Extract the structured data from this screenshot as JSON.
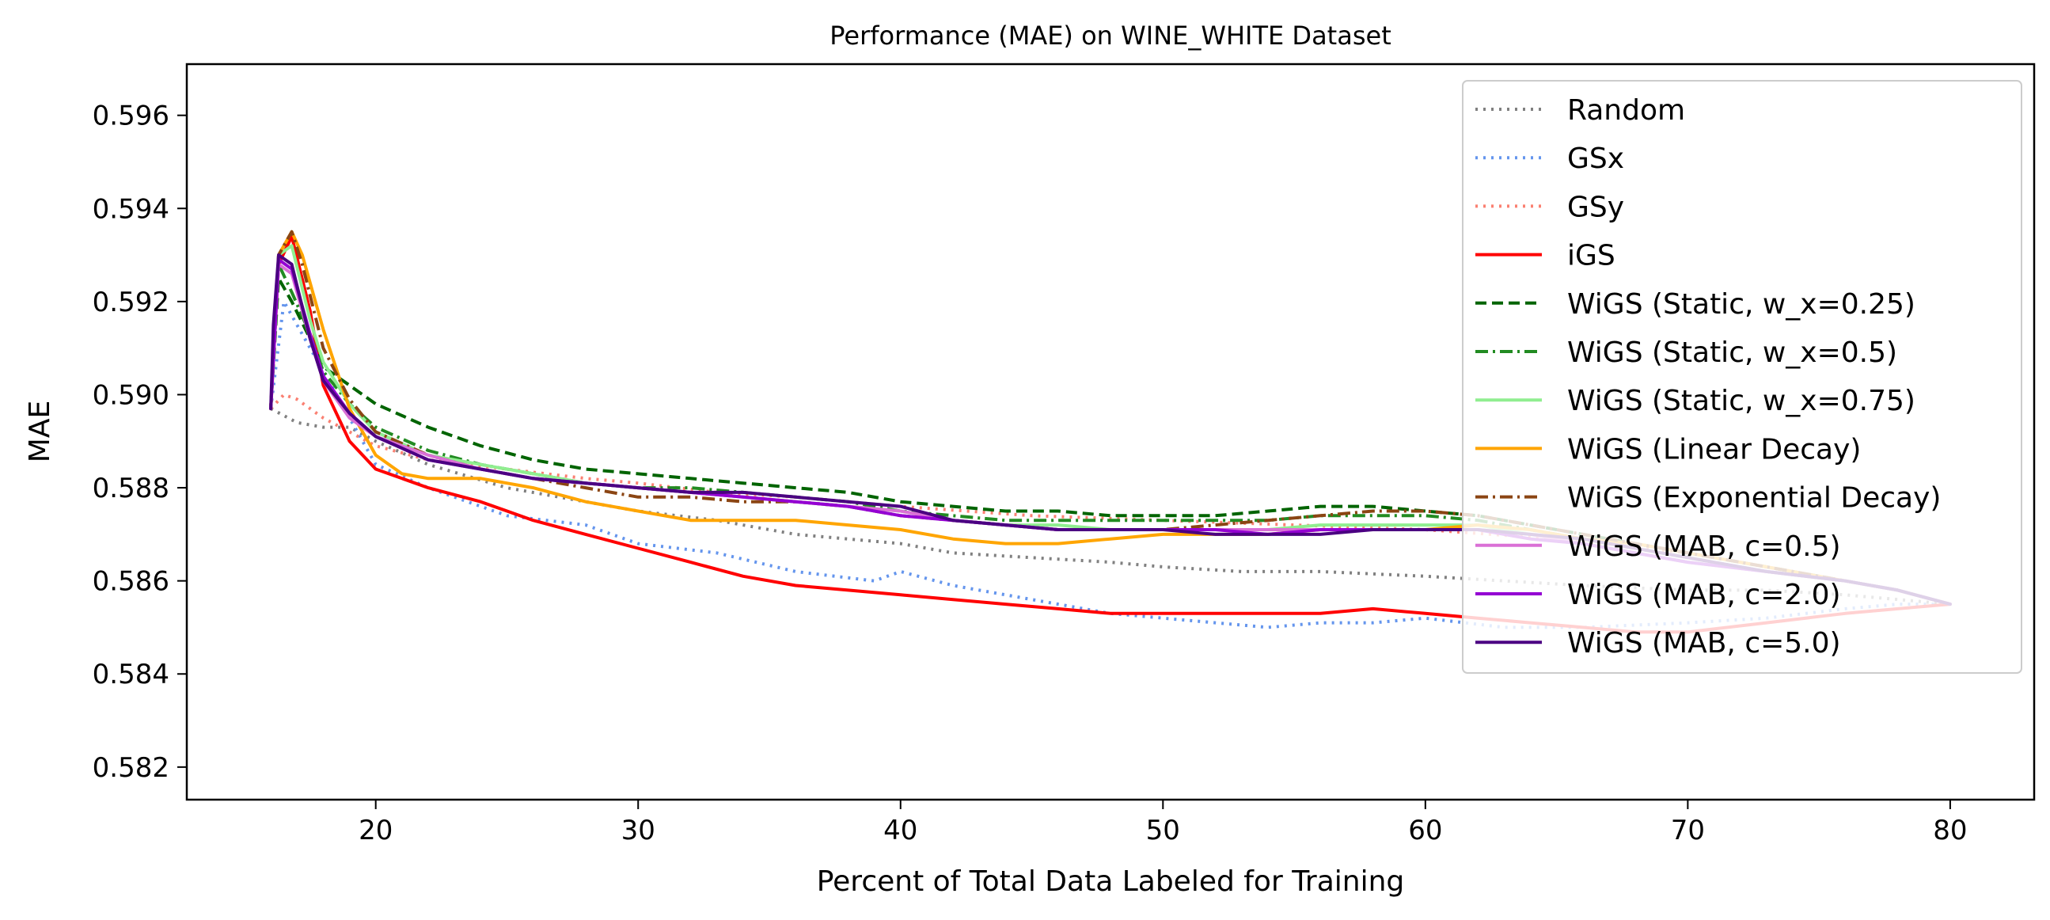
{
  "chart_data": {
    "type": "line",
    "title": "Performance (MAE) on WINE_WHITE Dataset",
    "xlabel": "Percent of Total Data Labeled for Training",
    "ylabel": "MAE",
    "xlim": [
      12.8,
      83.2
    ],
    "ylim": [
      0.5813,
      0.5971
    ],
    "xticks": [
      20,
      30,
      40,
      50,
      60,
      70,
      80
    ],
    "yticks": [
      0.582,
      0.584,
      0.586,
      0.588,
      0.59,
      0.592,
      0.594,
      0.596
    ],
    "grid": false,
    "legend_position": "top-right",
    "series": [
      {
        "name": "Random",
        "color": "#808080",
        "style": "dotted",
        "x": [
          16,
          17,
          18,
          19,
          20,
          22,
          25,
          28,
          30,
          33,
          36,
          40,
          42,
          45,
          48,
          50,
          53,
          56,
          60,
          63,
          66,
          70,
          73,
          76,
          78,
          80
        ],
        "y": [
          0.5897,
          0.5894,
          0.5893,
          0.5893,
          0.589,
          0.5885,
          0.588,
          0.5877,
          0.5875,
          0.5873,
          0.587,
          0.5868,
          0.5866,
          0.5865,
          0.5864,
          0.5863,
          0.5862,
          0.5862,
          0.5861,
          0.586,
          0.5859,
          0.5858,
          0.5858,
          0.5857,
          0.5856,
          0.5855
        ]
      },
      {
        "name": "GSx",
        "color": "#6495ED",
        "style": "dotted",
        "x": [
          16,
          16.5,
          17,
          18,
          19,
          20,
          22,
          25,
          28,
          30,
          33,
          36,
          39,
          40,
          42,
          45,
          48,
          50,
          52,
          54,
          56,
          58,
          60,
          63,
          66,
          70,
          73,
          76,
          78,
          80
        ],
        "y": [
          0.5897,
          0.592,
          0.5915,
          0.5905,
          0.5895,
          0.5885,
          0.588,
          0.5874,
          0.5872,
          0.5868,
          0.5866,
          0.5862,
          0.586,
          0.5862,
          0.5859,
          0.5856,
          0.5853,
          0.5852,
          0.5851,
          0.585,
          0.5851,
          0.5851,
          0.5852,
          0.585,
          0.585,
          0.5851,
          0.5852,
          0.5854,
          0.5855,
          0.5855
        ]
      },
      {
        "name": "GSy",
        "color": "#FA8072",
        "style": "dotted",
        "x": [
          16,
          16.5,
          17,
          18,
          19,
          20,
          22,
          25,
          28,
          30,
          33,
          36,
          40,
          45,
          50,
          55,
          60,
          65,
          70,
          73,
          76,
          78,
          80
        ],
        "y": [
          0.5897,
          0.59,
          0.5899,
          0.5895,
          0.5892,
          0.5889,
          0.5886,
          0.5884,
          0.5882,
          0.5881,
          0.5879,
          0.5878,
          0.5876,
          0.5874,
          0.5873,
          0.5872,
          0.5871,
          0.5869,
          0.5866,
          0.5863,
          0.586,
          0.5858,
          0.5855
        ]
      },
      {
        "name": "iGS",
        "color": "#FF0000",
        "style": "solid",
        "x": [
          16,
          16.3,
          16.8,
          17.5,
          18,
          19,
          20,
          21,
          22,
          24,
          26,
          28,
          30,
          32,
          34,
          36,
          38,
          40,
          42,
          44,
          46,
          48,
          50,
          52,
          54,
          56,
          58,
          60,
          62,
          64,
          66,
          68,
          70,
          73,
          76,
          78,
          80
        ],
        "y": [
          0.5897,
          0.5928,
          0.5934,
          0.5918,
          0.5902,
          0.589,
          0.5884,
          0.5882,
          0.588,
          0.5877,
          0.5873,
          0.587,
          0.5867,
          0.5864,
          0.5861,
          0.5859,
          0.5858,
          0.5857,
          0.5856,
          0.5855,
          0.5854,
          0.5853,
          0.5853,
          0.5853,
          0.5853,
          0.5853,
          0.5854,
          0.5853,
          0.5852,
          0.5851,
          0.585,
          0.5849,
          0.5849,
          0.5851,
          0.5853,
          0.5854,
          0.5855
        ]
      },
      {
        "name": "WiGS (Static, w_x=0.25)",
        "color": "#006400",
        "style": "dashed",
        "x": [
          16,
          16.3,
          16.8,
          17.5,
          18,
          19,
          20,
          22,
          24,
          26,
          28,
          30,
          32,
          34,
          36,
          38,
          40,
          42,
          44,
          46,
          48,
          50,
          52,
          54,
          56,
          58,
          60,
          62,
          64,
          66,
          68,
          70,
          73,
          76,
          78,
          80
        ],
        "y": [
          0.5897,
          0.5925,
          0.592,
          0.5912,
          0.5906,
          0.5902,
          0.5898,
          0.5893,
          0.5889,
          0.5886,
          0.5884,
          0.5883,
          0.5882,
          0.5881,
          0.588,
          0.5879,
          0.5877,
          0.5876,
          0.5875,
          0.5875,
          0.5874,
          0.5874,
          0.5874,
          0.5875,
          0.5876,
          0.5876,
          0.5875,
          0.5874,
          0.5872,
          0.587,
          0.5868,
          0.5866,
          0.5863,
          0.586,
          0.5858,
          0.5855
        ]
      },
      {
        "name": "WiGS (Static, w_x=0.5)",
        "color": "#228B22",
        "style": "dashdot",
        "x": [
          16,
          16.3,
          16.8,
          17.5,
          18,
          19,
          20,
          22,
          24,
          26,
          28,
          30,
          32,
          34,
          36,
          38,
          40,
          42,
          44,
          46,
          48,
          50,
          52,
          54,
          56,
          58,
          60,
          62,
          64,
          66,
          68,
          70,
          73,
          76,
          78,
          80
        ],
        "y": [
          0.5897,
          0.5928,
          0.5922,
          0.5913,
          0.5905,
          0.5898,
          0.5893,
          0.5888,
          0.5885,
          0.5883,
          0.5881,
          0.588,
          0.588,
          0.5879,
          0.5878,
          0.5877,
          0.5875,
          0.5874,
          0.5873,
          0.5873,
          0.5873,
          0.5873,
          0.5873,
          0.5873,
          0.5874,
          0.5874,
          0.5874,
          0.5873,
          0.5871,
          0.5869,
          0.5867,
          0.5865,
          0.5862,
          0.586,
          0.5858,
          0.5855
        ]
      },
      {
        "name": "WiGS (Static, w_x=0.75)",
        "color": "#90EE90",
        "style": "solid",
        "x": [
          16,
          16.3,
          16.8,
          17.5,
          18,
          19,
          20,
          22,
          24,
          26,
          28,
          30,
          32,
          34,
          36,
          38,
          40,
          42,
          44,
          46,
          48,
          50,
          52,
          54,
          56,
          58,
          60,
          62,
          64,
          66,
          68,
          70,
          73,
          76,
          78,
          80
        ],
        "y": [
          0.5897,
          0.593,
          0.5932,
          0.5916,
          0.5907,
          0.5898,
          0.5892,
          0.5887,
          0.5885,
          0.5883,
          0.5881,
          0.588,
          0.5879,
          0.5878,
          0.5877,
          0.5876,
          0.5875,
          0.5873,
          0.5872,
          0.5872,
          0.5871,
          0.5871,
          0.5871,
          0.5871,
          0.5872,
          0.5872,
          0.5872,
          0.5872,
          0.587,
          0.5868,
          0.5866,
          0.5864,
          0.5862,
          0.586,
          0.5858,
          0.5855
        ]
      },
      {
        "name": "WiGS (Linear Decay)",
        "color": "#FFA500",
        "style": "solid",
        "x": [
          16,
          16.3,
          16.8,
          17.2,
          18,
          19,
          20,
          21,
          22,
          24,
          26,
          28,
          30,
          32,
          34,
          36,
          38,
          40,
          42,
          44,
          46,
          48,
          50,
          52,
          54,
          56,
          58,
          60,
          62,
          64,
          66,
          68,
          70,
          73,
          76,
          78,
          80
        ],
        "y": [
          0.5897,
          0.593,
          0.5935,
          0.593,
          0.5914,
          0.5897,
          0.5887,
          0.5883,
          0.5882,
          0.5882,
          0.588,
          0.5877,
          0.5875,
          0.5873,
          0.5873,
          0.5873,
          0.5872,
          0.5871,
          0.5869,
          0.5868,
          0.5868,
          0.5869,
          0.587,
          0.587,
          0.587,
          0.5871,
          0.5871,
          0.5871,
          0.5872,
          0.5871,
          0.5869,
          0.5868,
          0.5866,
          0.5863,
          0.586,
          0.5858,
          0.5855
        ]
      },
      {
        "name": "WiGS (Exponential Decay)",
        "color": "#8B4513",
        "style": "dashdot",
        "x": [
          16,
          16.3,
          16.8,
          17.2,
          18,
          19,
          20,
          22,
          24,
          26,
          28,
          30,
          32,
          34,
          36,
          38,
          40,
          42,
          44,
          46,
          48,
          50,
          52,
          54,
          56,
          58,
          60,
          62,
          64,
          66,
          68,
          70,
          73,
          76,
          78,
          80
        ],
        "y": [
          0.5897,
          0.593,
          0.5935,
          0.5928,
          0.591,
          0.5899,
          0.5892,
          0.5887,
          0.5884,
          0.5882,
          0.588,
          0.5878,
          0.5878,
          0.5877,
          0.5877,
          0.5876,
          0.5874,
          0.5873,
          0.5872,
          0.5871,
          0.5871,
          0.5871,
          0.5872,
          0.5873,
          0.5874,
          0.5875,
          0.5875,
          0.5874,
          0.5872,
          0.587,
          0.5868,
          0.5866,
          0.5863,
          0.586,
          0.5858,
          0.5855
        ]
      },
      {
        "name": "WiGS (MAB, c=0.5)",
        "color": "#DA70D6",
        "style": "solid",
        "x": [
          16,
          16.3,
          16.8,
          17.5,
          18,
          19,
          20,
          22,
          24,
          26,
          28,
          30,
          32,
          34,
          36,
          38,
          40,
          42,
          44,
          46,
          48,
          50,
          52,
          54,
          56,
          58,
          60,
          62,
          64,
          66,
          68,
          70,
          73,
          76,
          78,
          80
        ],
        "y": [
          0.5897,
          0.5928,
          0.5926,
          0.5912,
          0.5903,
          0.5895,
          0.5891,
          0.5887,
          0.5884,
          0.5882,
          0.5881,
          0.588,
          0.5879,
          0.5878,
          0.5877,
          0.5876,
          0.5875,
          0.5873,
          0.5872,
          0.5871,
          0.5871,
          0.5871,
          0.5871,
          0.5871,
          0.5871,
          0.5871,
          0.5871,
          0.5871,
          0.587,
          0.5868,
          0.5866,
          0.5864,
          0.5862,
          0.586,
          0.5858,
          0.5855
        ]
      },
      {
        "name": "WiGS (MAB, c=2.0)",
        "color": "#9400D3",
        "style": "solid",
        "x": [
          16,
          16.3,
          16.8,
          17.5,
          18,
          19,
          20,
          22,
          24,
          26,
          28,
          30,
          32,
          34,
          36,
          38,
          40,
          42,
          44,
          46,
          48,
          50,
          52,
          54,
          56,
          58,
          60,
          62,
          64,
          66,
          68,
          70,
          73,
          76,
          78,
          80
        ],
        "y": [
          0.5897,
          0.5929,
          0.5927,
          0.5913,
          0.5904,
          0.5896,
          0.5891,
          0.5886,
          0.5884,
          0.5882,
          0.5881,
          0.588,
          0.5879,
          0.5878,
          0.5877,
          0.5876,
          0.5874,
          0.5873,
          0.5872,
          0.5871,
          0.5871,
          0.5871,
          0.5871,
          0.587,
          0.5871,
          0.5871,
          0.5871,
          0.5871,
          0.5869,
          0.5868,
          0.5866,
          0.5864,
          0.5862,
          0.586,
          0.5858,
          0.5855
        ]
      },
      {
        "name": "WiGS (MAB, c=5.0)",
        "color": "#4B0082",
        "style": "solid",
        "x": [
          16,
          16.1,
          16.3,
          16.8,
          17.5,
          18,
          19,
          20,
          22,
          24,
          26,
          28,
          30,
          32,
          34,
          36,
          38,
          40,
          42,
          44,
          46,
          48,
          50,
          52,
          54,
          56,
          58,
          60,
          62,
          64,
          66,
          68,
          70,
          73,
          76,
          78,
          80
        ],
        "y": [
          0.5897,
          0.5915,
          0.593,
          0.5928,
          0.5912,
          0.5903,
          0.5896,
          0.5891,
          0.5886,
          0.5884,
          0.5882,
          0.5881,
          0.588,
          0.5879,
          0.5879,
          0.5878,
          0.5877,
          0.5876,
          0.5873,
          0.5872,
          0.5871,
          0.5871,
          0.5871,
          0.587,
          0.587,
          0.587,
          0.5871,
          0.5871,
          0.5871,
          0.587,
          0.5869,
          0.5867,
          0.5865,
          0.5862,
          0.586,
          0.5858,
          0.5855
        ]
      }
    ]
  }
}
